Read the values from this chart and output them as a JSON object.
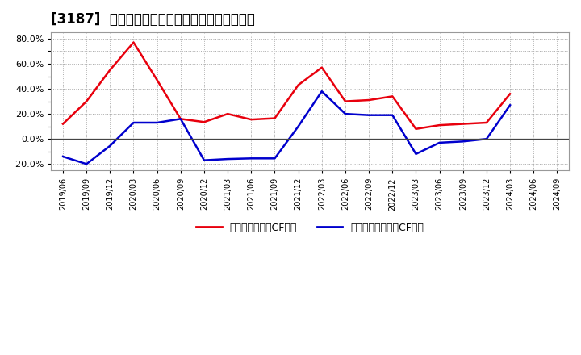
{
  "title2": "[3187]  有利子負債キャッシュフロー比率の推移",
  "legend_red": "有利子負債営業CF比率",
  "legend_blue": "有利子負債フリーCF比率",
  "dates": [
    "2019/06",
    "2019/09",
    "2019/12",
    "2020/03",
    "2020/06",
    "2020/09",
    "2020/12",
    "2021/03",
    "2021/06",
    "2021/09",
    "2021/12",
    "2022/03",
    "2022/06",
    "2022/09",
    "2022/12",
    "2023/03",
    "2023/06",
    "2023/09",
    "2023/12",
    "2024/03",
    "2024/06",
    "2024/09"
  ],
  "red_values": [
    0.12,
    0.3,
    0.55,
    0.77,
    0.47,
    0.16,
    0.135,
    0.2,
    0.155,
    0.165,
    0.43,
    0.57,
    0.3,
    0.31,
    0.34,
    0.08,
    0.11,
    0.12,
    0.13,
    0.36,
    null,
    null
  ],
  "blue_values": [
    -0.14,
    -0.2,
    -0.055,
    0.13,
    0.13,
    0.16,
    -0.17,
    -0.16,
    -0.155,
    -0.155,
    0.1,
    0.38,
    0.2,
    0.19,
    0.19,
    -0.12,
    -0.03,
    -0.02,
    0.0,
    0.27,
    null,
    null
  ],
  "ylim": [
    -0.25,
    0.85
  ],
  "ytick_labels_show": [
    -0.2,
    0.0,
    0.2,
    0.4,
    0.6,
    0.8
  ],
  "color_red": "#e8000d",
  "color_blue": "#0000cd",
  "background_color": "#ffffff",
  "grid_color": "#aaaaaa",
  "title_fontsize": 12,
  "legend_fontsize": 9,
  "axis_fontsize": 8
}
